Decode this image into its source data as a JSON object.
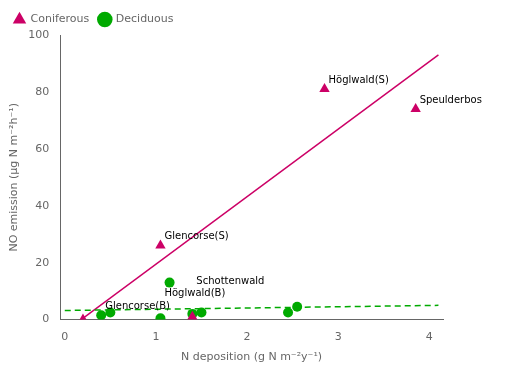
{
  "chart_data": {
    "type": "scatter",
    "xlabel": "N deposition (g N m⁻²y⁻¹)",
    "ylabel": "NO emission (µg N m⁻²h⁻¹)",
    "xlim": [
      -0.05,
      4.15
    ],
    "ylim": [
      0,
      100
    ],
    "xticks": [
      0,
      1,
      2,
      3,
      4
    ],
    "yticks": [
      0,
      20,
      40,
      60,
      80,
      100
    ],
    "grid": false,
    "legend": "upper left",
    "series": [
      {
        "type": "line",
        "color": "#00aa00",
        "line_style": "dashed",
        "x": [
          0.0,
          4.1
        ],
        "values": [
          3.2,
          5.0
        ]
      },
      {
        "type": "line",
        "color": "#cc0066",
        "line_style": "solid",
        "x": [
          0.18,
          4.1
        ],
        "values": [
          0.0,
          93.0
        ]
      },
      {
        "name": "Coniferous",
        "type": "scatter",
        "color": "#cc0066",
        "marker": "triangle",
        "x": [
          0.2,
          1.05,
          1.4,
          2.85,
          3.85
        ],
        "values": [
          0,
          26,
          1,
          81,
          74
        ]
      },
      {
        "name": "Deciduous",
        "type": "scatter",
        "color": "#00aa00",
        "marker": "circle",
        "x": [
          0.4,
          0.5,
          1.05,
          1.15,
          1.4,
          1.5,
          2.45,
          2.55
        ],
        "values": [
          1.5,
          2.5,
          0.5,
          13,
          2,
          2.5,
          2.5,
          4.5
        ]
      }
    ],
    "annotations": [
      {
        "text": "Glencorse(S)",
        "x": 1.05,
        "y": 26
      },
      {
        "text": "Höglwald(S)",
        "x": 2.85,
        "y": 81
      },
      {
        "text": "Speulderbos",
        "x": 3.85,
        "y": 74
      },
      {
        "text": "Glencorse(B)",
        "x": 0.4,
        "y": 1.5
      },
      {
        "text": "Höglwald(B)",
        "x": 1.05,
        "y": 0.5
      },
      {
        "text": "Schottenwald",
        "x": 1.4,
        "y": 2
      }
    ]
  }
}
